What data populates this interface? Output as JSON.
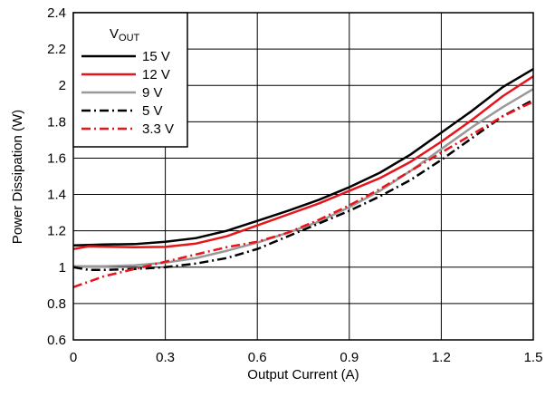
{
  "chart_data": {
    "type": "line",
    "title": "",
    "xlabel": "Output Current (A)",
    "ylabel": "Power Dissipation (W)",
    "xlim": [
      0,
      1.5
    ],
    "ylim": [
      0.6,
      2.4
    ],
    "x_ticks": [
      0,
      0.3,
      0.6,
      0.9,
      1.2,
      1.5
    ],
    "x_tick_labels": [
      "0",
      "0.3",
      "0.6",
      "0.9",
      "1.2",
      "1.5"
    ],
    "y_ticks": [
      0.6,
      0.8,
      1.0,
      1.2,
      1.4,
      1.6,
      1.8,
      2.0,
      2.2,
      2.4
    ],
    "y_tick_labels": [
      "0.6",
      "0.8",
      "1",
      "1.2",
      "1.4",
      "1.6",
      "1.8",
      "2",
      "2.2",
      "2.4"
    ],
    "grid": true,
    "legend": {
      "title_main": "V",
      "title_sub": "OUT",
      "placement": "top-left"
    },
    "series": [
      {
        "name": "15 V",
        "color": "#000000",
        "style": "solid",
        "points": [
          [
            0,
            1.12
          ],
          [
            0.1,
            1.125
          ],
          [
            0.2,
            1.127
          ],
          [
            0.3,
            1.14
          ],
          [
            0.4,
            1.16
          ],
          [
            0.5,
            1.2
          ],
          [
            0.6,
            1.255
          ],
          [
            0.7,
            1.31
          ],
          [
            0.8,
            1.37
          ],
          [
            0.9,
            1.44
          ],
          [
            1.0,
            1.52
          ],
          [
            1.1,
            1.62
          ],
          [
            1.2,
            1.74
          ],
          [
            1.3,
            1.86
          ],
          [
            1.4,
            1.99
          ],
          [
            1.5,
            2.09
          ]
        ]
      },
      {
        "name": "12 V",
        "color": "#e8141c",
        "style": "solid",
        "points": [
          [
            0,
            1.1
          ],
          [
            0.05,
            1.115
          ],
          [
            0.1,
            1.113
          ],
          [
            0.2,
            1.11
          ],
          [
            0.3,
            1.112
          ],
          [
            0.4,
            1.13
          ],
          [
            0.5,
            1.17
          ],
          [
            0.6,
            1.23
          ],
          [
            0.7,
            1.29
          ],
          [
            0.8,
            1.35
          ],
          [
            0.9,
            1.42
          ],
          [
            1.0,
            1.49
          ],
          [
            1.1,
            1.58
          ],
          [
            1.2,
            1.69
          ],
          [
            1.3,
            1.81
          ],
          [
            1.4,
            1.94
          ],
          [
            1.5,
            2.05
          ]
        ]
      },
      {
        "name": "9 V",
        "color": "#999999",
        "style": "solid",
        "points": [
          [
            0,
            1.005
          ],
          [
            0.1,
            1.005
          ],
          [
            0.2,
            1.01
          ],
          [
            0.3,
            1.025
          ],
          [
            0.4,
            1.05
          ],
          [
            0.5,
            1.09
          ],
          [
            0.6,
            1.135
          ],
          [
            0.7,
            1.19
          ],
          [
            0.8,
            1.25
          ],
          [
            0.9,
            1.33
          ],
          [
            1.0,
            1.42
          ],
          [
            1.1,
            1.53
          ],
          [
            1.2,
            1.65
          ],
          [
            1.3,
            1.77
          ],
          [
            1.4,
            1.88
          ],
          [
            1.5,
            1.98
          ]
        ]
      },
      {
        "name": "5 V",
        "color": "#000000",
        "style": "dashdot",
        "points": [
          [
            0,
            1.0
          ],
          [
            0.05,
            0.985
          ],
          [
            0.1,
            0.985
          ],
          [
            0.2,
            0.99
          ],
          [
            0.3,
            1.0
          ],
          [
            0.4,
            1.02
          ],
          [
            0.5,
            1.05
          ],
          [
            0.6,
            1.1
          ],
          [
            0.7,
            1.17
          ],
          [
            0.8,
            1.24
          ],
          [
            0.9,
            1.31
          ],
          [
            1.0,
            1.39
          ],
          [
            1.1,
            1.48
          ],
          [
            1.2,
            1.59
          ],
          [
            1.3,
            1.71
          ],
          [
            1.4,
            1.83
          ],
          [
            1.5,
            1.92
          ]
        ]
      },
      {
        "name": "3.3 V",
        "color": "#e8141c",
        "style": "dashdot",
        "points": [
          [
            0,
            0.89
          ],
          [
            0.05,
            0.92
          ],
          [
            0.1,
            0.95
          ],
          [
            0.2,
            0.99
          ],
          [
            0.3,
            1.03
          ],
          [
            0.4,
            1.07
          ],
          [
            0.5,
            1.11
          ],
          [
            0.6,
            1.14
          ],
          [
            0.7,
            1.19
          ],
          [
            0.8,
            1.26
          ],
          [
            0.9,
            1.34
          ],
          [
            1.0,
            1.43
          ],
          [
            1.1,
            1.53
          ],
          [
            1.2,
            1.63
          ],
          [
            1.3,
            1.73
          ],
          [
            1.4,
            1.83
          ],
          [
            1.5,
            1.91
          ]
        ]
      }
    ]
  }
}
